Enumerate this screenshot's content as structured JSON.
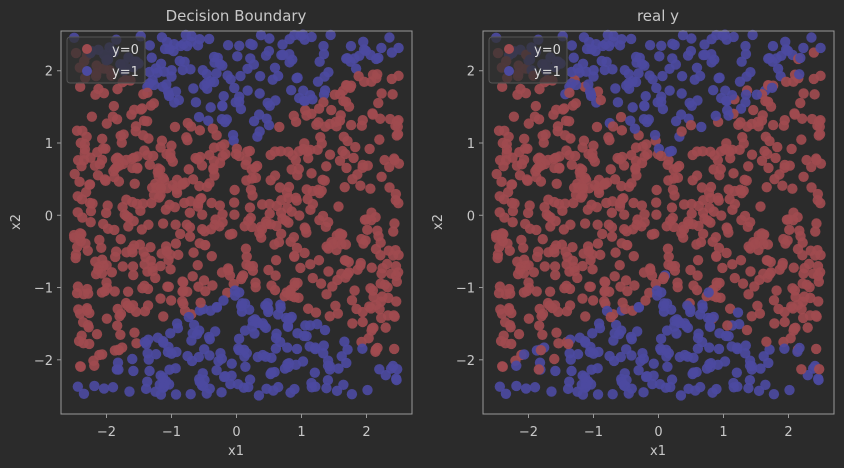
{
  "chart_data": [
    {
      "type": "scatter",
      "title": "Decision Boundary",
      "xlabel": "x1",
      "ylabel": "x2",
      "xlim": [
        -2.7,
        2.7
      ],
      "ylim": [
        -2.75,
        2.55
      ],
      "xticks": [
        -2,
        -1,
        0,
        1,
        2
      ],
      "yticks": [
        -2,
        -1,
        0,
        1,
        2
      ],
      "legend": {
        "placement": "top-left",
        "entries": [
          "y=0",
          "y=1"
        ]
      },
      "grid": false,
      "colors": {
        "y0": "#a04b4f",
        "y1": "#4c4aa0"
      },
      "labeling": "predicted",
      "points": {
        "n": 1000,
        "x_range": [
          -2.5,
          2.5
        ],
        "y_range": [
          -2.5,
          2.5
        ]
      }
    },
    {
      "type": "scatter",
      "title": "real y",
      "xlabel": "x1",
      "ylabel": "x2",
      "xlim": [
        -2.7,
        2.7
      ],
      "ylim": [
        -2.75,
        2.55
      ],
      "xticks": [
        -2,
        -1,
        0,
        1,
        2
      ],
      "yticks": [
        -2,
        -1,
        0,
        1,
        2
      ],
      "legend": {
        "placement": "top-left",
        "entries": [
          "y=0",
          "y=1"
        ]
      },
      "grid": false,
      "colors": {
        "y0": "#a04b4f",
        "y1": "#4c4aa0"
      },
      "labeling": "true",
      "points": {
        "n": 1000,
        "x_range": [
          -2.5,
          2.5
        ],
        "y_range": [
          -2.5,
          2.5
        ]
      }
    }
  ]
}
